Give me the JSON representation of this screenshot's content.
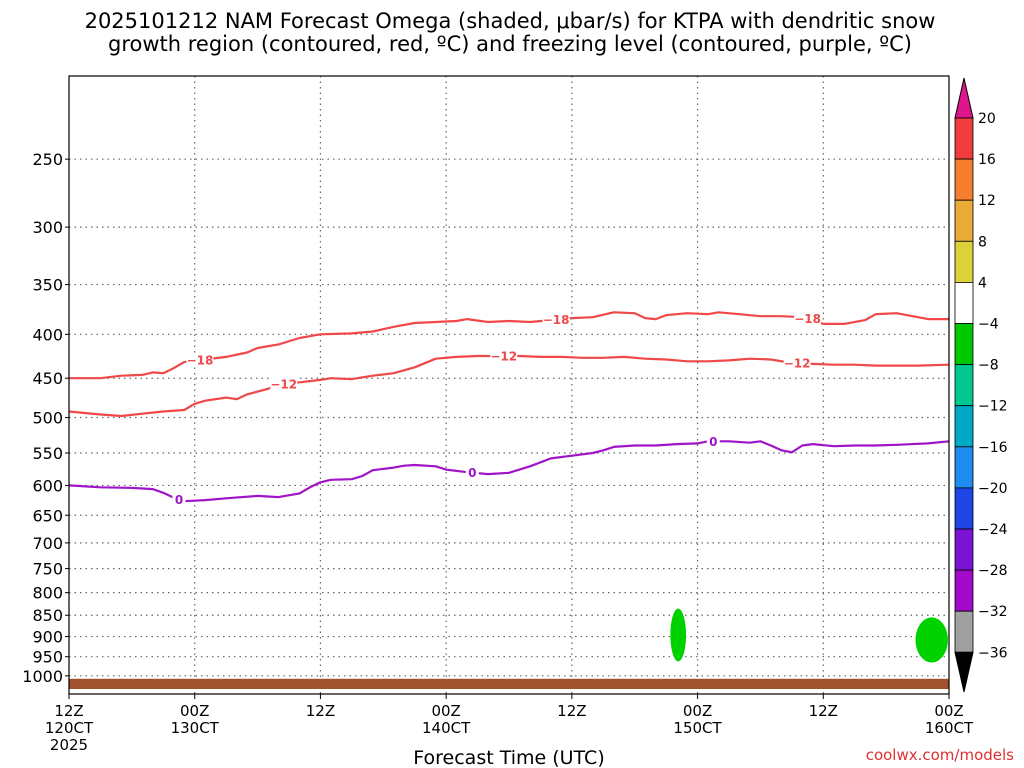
{
  "chart_data": {
    "type": "contour",
    "title_line1": "2025101212 NAM Forecast Omega (shaded, μbar/s) for KTPA with dendritic snow",
    "title_line2": "growth region (contoured, red, ºC) and freezing level (contoured, purple, ºC)",
    "xlabel": "Forecast Time (UTC)",
    "ylabel": "",
    "credit": "coolwx.com/models",
    "x_range_hours": [
      0,
      84
    ],
    "pressure_range_mb": [
      1050,
      200
    ],
    "y_ticks": [
      250,
      300,
      350,
      400,
      450,
      500,
      550,
      600,
      650,
      700,
      750,
      800,
      850,
      900,
      950,
      1000
    ],
    "y_tick_labels": [
      "250",
      "300",
      "350",
      "400",
      "450",
      "500",
      "550",
      "600",
      "650",
      "700",
      "750",
      "800",
      "850",
      "900",
      "950",
      "1000"
    ],
    "x_ticks": [
      {
        "hour": 0,
        "line1": "12Z",
        "line2": "120CT",
        "line3": "2025"
      },
      {
        "hour": 12,
        "line1": "00Z",
        "line2": "130CT",
        "line3": ""
      },
      {
        "hour": 24,
        "line1": "12Z",
        "line2": "",
        "line3": ""
      },
      {
        "hour": 36,
        "line1": "00Z",
        "line2": "140CT",
        "line3": ""
      },
      {
        "hour": 48,
        "line1": "12Z",
        "line2": "",
        "line3": ""
      },
      {
        "hour": 60,
        "line1": "00Z",
        "line2": "150CT",
        "line3": ""
      },
      {
        "hour": 72,
        "line1": "12Z",
        "line2": "",
        "line3": ""
      },
      {
        "hour": 84,
        "line1": "00Z",
        "line2": "160CT",
        "line3": ""
      }
    ],
    "colorbar": {
      "levels": [
        "20",
        "16",
        "12",
        "8",
        "4",
        "−4",
        "−8",
        "−12",
        "−16",
        "−20",
        "−24",
        "−28",
        "−32",
        "−36"
      ],
      "colors": [
        "#f03c3c",
        "#f57e2e",
        "#e8ab37",
        "#dbd237",
        "#ffffff",
        "#00c800",
        "#00c890",
        "#00a8c8",
        "#1e8cf0",
        "#1e46e6",
        "#7814d2",
        "#a00ac8",
        "#a0a0a0"
      ],
      "top_arrow_color": "#e0148c",
      "bottom_arrow_color": "#000000"
    },
    "series": [
      {
        "name": "-18",
        "color": "#f04848",
        "label_at_hour": [
          12.5,
          46.5,
          70.5
        ],
        "points": [
          [
            0,
            450
          ],
          [
            3,
            450
          ],
          [
            5,
            447
          ],
          [
            7,
            446
          ],
          [
            8,
            443
          ],
          [
            9,
            444
          ],
          [
            10,
            438
          ],
          [
            11,
            431
          ],
          [
            12,
            429
          ],
          [
            13,
            428
          ],
          [
            15,
            425
          ],
          [
            17,
            420
          ],
          [
            18,
            415
          ],
          [
            20,
            411
          ],
          [
            22,
            404
          ],
          [
            24,
            400
          ],
          [
            27,
            399
          ],
          [
            29,
            397
          ],
          [
            31,
            392
          ],
          [
            33,
            388
          ],
          [
            35,
            387
          ],
          [
            37,
            386
          ],
          [
            38,
            384
          ],
          [
            40,
            387
          ],
          [
            42,
            386
          ],
          [
            44,
            387
          ],
          [
            46,
            385
          ],
          [
            48,
            383
          ],
          [
            50,
            382
          ],
          [
            52,
            377
          ],
          [
            54,
            378
          ],
          [
            55,
            383
          ],
          [
            56,
            384
          ],
          [
            57,
            380
          ],
          [
            59,
            378
          ],
          [
            61,
            379
          ],
          [
            62,
            377
          ],
          [
            64,
            379
          ],
          [
            66,
            381
          ],
          [
            68,
            381
          ],
          [
            70,
            382
          ],
          [
            71,
            385
          ],
          [
            72,
            389
          ],
          [
            74,
            389
          ],
          [
            76,
            385
          ],
          [
            77,
            379
          ],
          [
            79,
            378
          ],
          [
            82,
            384
          ],
          [
            84,
            384
          ]
        ]
      },
      {
        "name": "-12",
        "color": "#f04848",
        "label_at_hour": [
          20.5,
          41.5,
          69.5
        ],
        "points": [
          [
            0,
            492
          ],
          [
            3,
            496
          ],
          [
            5,
            498
          ],
          [
            7,
            495
          ],
          [
            9,
            492
          ],
          [
            11,
            490
          ],
          [
            12,
            482
          ],
          [
            13,
            478
          ],
          [
            15,
            474
          ],
          [
            16,
            476
          ],
          [
            17,
            470
          ],
          [
            19,
            463
          ],
          [
            20,
            458
          ],
          [
            22,
            455
          ],
          [
            24,
            452
          ],
          [
            25,
            450
          ],
          [
            27,
            451
          ],
          [
            29,
            447
          ],
          [
            31,
            444
          ],
          [
            33,
            437
          ],
          [
            35,
            427
          ],
          [
            37,
            425
          ],
          [
            39,
            424
          ],
          [
            41,
            424
          ],
          [
            43,
            424
          ],
          [
            45,
            425
          ],
          [
            47,
            425
          ],
          [
            49,
            426
          ],
          [
            51,
            426
          ],
          [
            53,
            425
          ],
          [
            55,
            427
          ],
          [
            57,
            428
          ],
          [
            59,
            430
          ],
          [
            61,
            430
          ],
          [
            63,
            429
          ],
          [
            65,
            427
          ],
          [
            67,
            428
          ],
          [
            69,
            432
          ],
          [
            71,
            433
          ],
          [
            73,
            434
          ],
          [
            75,
            434
          ],
          [
            77,
            435
          ],
          [
            79,
            435
          ],
          [
            81,
            435
          ],
          [
            84,
            434
          ]
        ]
      },
      {
        "name": "0",
        "color": "#a014c8",
        "label_at_hour": [
          10.5,
          38.5,
          61.5
        ],
        "points": [
          [
            0,
            600
          ],
          [
            3,
            603
          ],
          [
            6,
            604
          ],
          [
            8,
            606
          ],
          [
            9,
            612
          ],
          [
            10,
            620
          ],
          [
            11,
            626
          ],
          [
            13,
            624
          ],
          [
            15,
            621
          ],
          [
            18,
            617
          ],
          [
            20,
            619
          ],
          [
            22,
            613
          ],
          [
            23,
            603
          ],
          [
            24,
            595
          ],
          [
            25,
            591
          ],
          [
            27,
            590
          ],
          [
            28,
            585
          ],
          [
            29,
            576
          ],
          [
            31,
            572
          ],
          [
            32,
            569
          ],
          [
            33,
            568
          ],
          [
            35,
            570
          ],
          [
            36,
            575
          ],
          [
            38,
            579
          ],
          [
            40,
            582
          ],
          [
            42,
            580
          ],
          [
            44,
            570
          ],
          [
            46,
            558
          ],
          [
            48,
            554
          ],
          [
            50,
            550
          ],
          [
            51,
            546
          ],
          [
            52,
            541
          ],
          [
            54,
            539
          ],
          [
            56,
            539
          ],
          [
            58,
            537
          ],
          [
            60,
            536
          ],
          [
            61,
            533
          ],
          [
            63,
            533
          ],
          [
            65,
            535
          ],
          [
            66,
            533
          ],
          [
            67,
            539
          ],
          [
            68,
            546
          ],
          [
            69,
            549
          ],
          [
            70,
            539
          ],
          [
            71,
            537
          ],
          [
            73,
            540
          ],
          [
            75,
            539
          ],
          [
            77,
            539
          ],
          [
            79,
            538
          ],
          [
            82,
            536
          ],
          [
            84,
            533
          ]
        ]
      }
    ],
    "shaded_regions": [
      {
        "level": "−4 to −8",
        "color": "#00d200",
        "hour_range": [
          57.4,
          58.9
        ],
        "pressure_range_mb": [
          835,
          962
        ]
      },
      {
        "level": "−4 to −8",
        "color": "#00d200",
        "hour_range": [
          80.8,
          83.9
        ],
        "pressure_range_mb": [
          855,
          965
        ]
      }
    ],
    "ground": {
      "color": "#a0522d",
      "pressure_range_mb": [
        1008,
        1036
      ]
    }
  }
}
